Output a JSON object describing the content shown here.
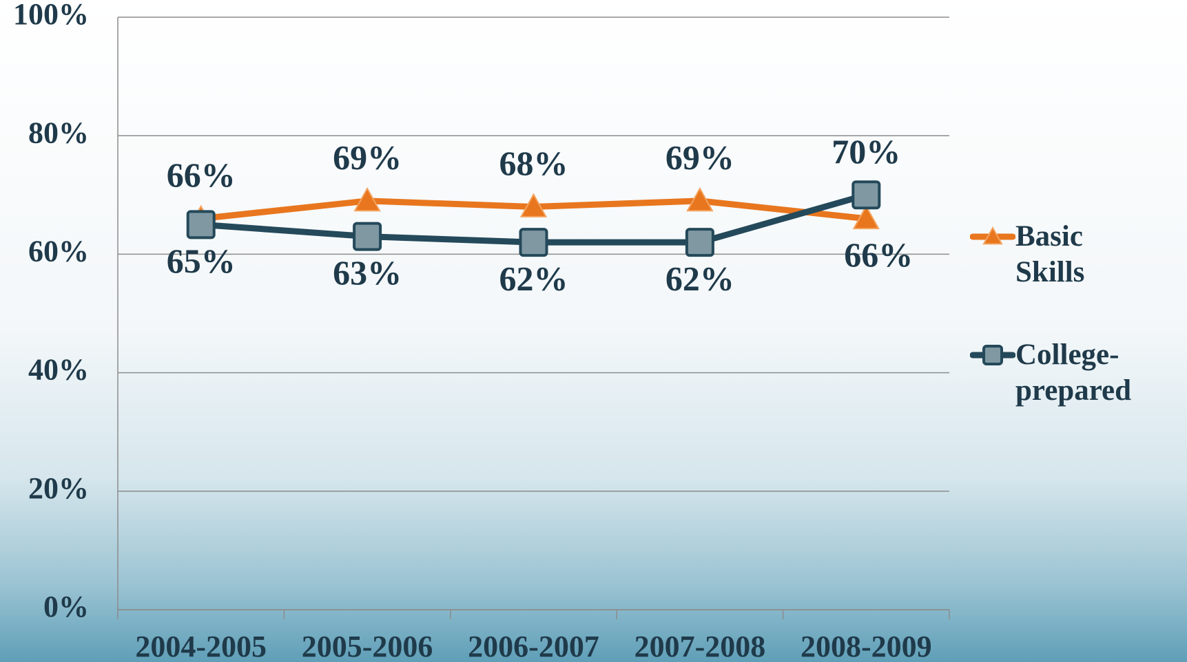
{
  "chart_data": {
    "type": "line",
    "categories": [
      "2004-2005",
      "2005-2006",
      "2006-2007",
      "2007-2008",
      "2008-2009"
    ],
    "series": [
      {
        "name": "Basic Skills",
        "color": "#e8761e",
        "marker": "triangle",
        "values": [
          66,
          69,
          68,
          69,
          66
        ],
        "value_labels": [
          "66%",
          "69%",
          "68%",
          "69%",
          "66%"
        ]
      },
      {
        "name": "College-prepared",
        "color": "#24495a",
        "marker": "square",
        "values": [
          65,
          63,
          62,
          62,
          70
        ],
        "value_labels": [
          "65%",
          "63%",
          "62%",
          "62%",
          "70%"
        ]
      }
    ],
    "ylim": [
      0,
      100
    ],
    "yticks": [
      {
        "value": 0,
        "label": "0%"
      },
      {
        "value": 20,
        "label": "20%"
      },
      {
        "value": 40,
        "label": "40%"
      },
      {
        "value": 60,
        "label": "60%"
      },
      {
        "value": 80,
        "label": "80%"
      },
      {
        "value": 100,
        "label": "100%"
      }
    ],
    "grid": true,
    "legend": "right"
  }
}
